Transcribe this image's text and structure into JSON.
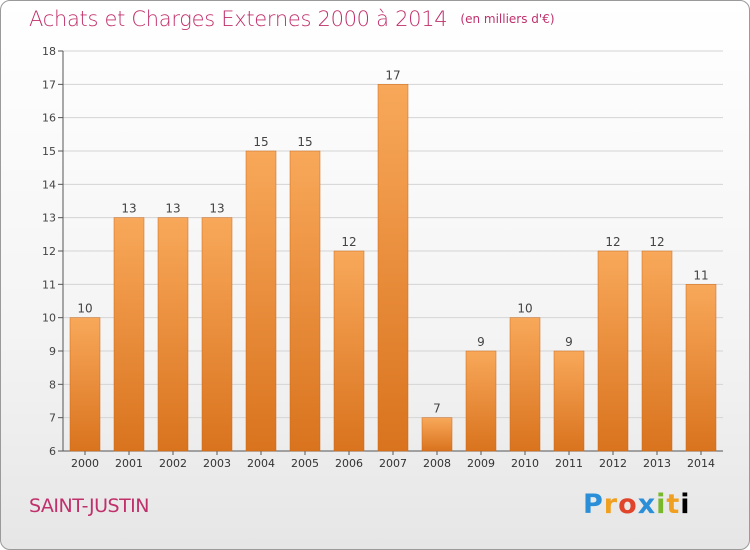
{
  "title": "Achats et Charges Externes 2000 à 2014",
  "unit": "(en milliers d'€)",
  "commune": "SAINT-JUSTIN",
  "brand": "Proxiti",
  "colors": {
    "bar_top": "#f8a85a",
    "bar_bottom": "#d9731e",
    "title": "#c0306b"
  },
  "chart_data": {
    "type": "bar",
    "categories": [
      "2000",
      "2001",
      "2002",
      "2003",
      "2004",
      "2005",
      "2006",
      "2007",
      "2008",
      "2009",
      "2010",
      "2011",
      "2012",
      "2013",
      "2014"
    ],
    "values": [
      10,
      13,
      13,
      13,
      15,
      15,
      12,
      17,
      7,
      9,
      10,
      9,
      12,
      12,
      11
    ],
    "yticks": [
      6,
      7,
      8,
      9,
      10,
      11,
      12,
      13,
      14,
      15,
      16,
      17,
      18
    ],
    "ylim": [
      6,
      18
    ],
    "grid": true,
    "legend": "none"
  }
}
